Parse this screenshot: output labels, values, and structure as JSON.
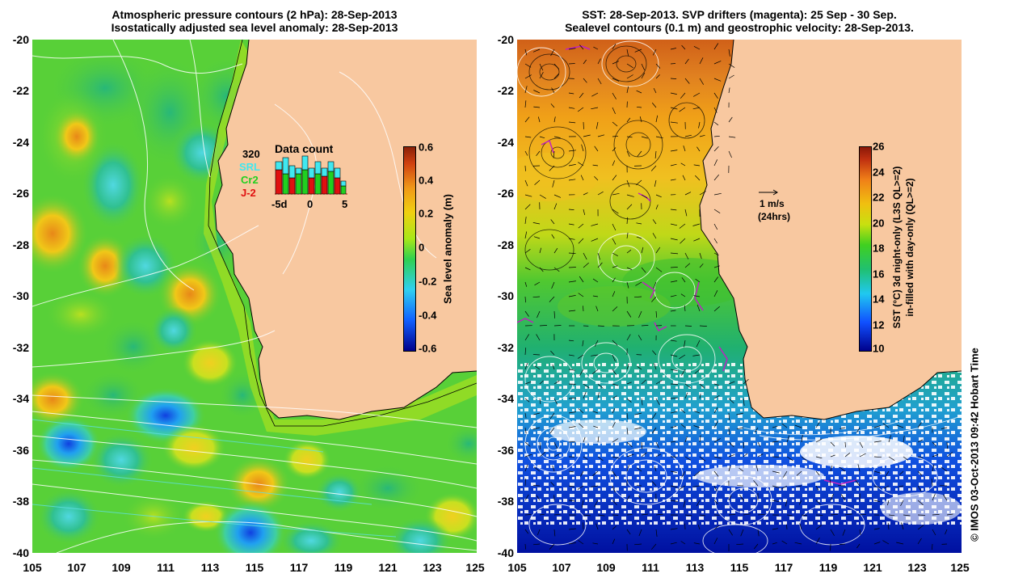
{
  "left_panel": {
    "title_line1": "Atmospheric pressure contours (2 hPa): 28-Sep-2013",
    "title_line2": "Isostatically adjusted sea level anomaly: 28-Sep-2013",
    "colorbar": {
      "label": "Sea level anomaly (m)",
      "ticks": [
        "0.6",
        "0.4",
        "0.2",
        "0",
        "-0.2",
        "-0.4",
        "-0.6"
      ]
    },
    "inset": {
      "title": "Data count",
      "max_label": "320",
      "satellites": [
        {
          "name": "SRL",
          "color": "#40e8f0"
        },
        {
          "name": "Cr2",
          "color": "#20d020"
        },
        {
          "name": "J-2",
          "color": "#e01010"
        }
      ],
      "x_ticks": [
        "-5d",
        "0",
        "5"
      ]
    }
  },
  "right_panel": {
    "title_line1": "SST: 28-Sep-2013. SVP drifters (magenta): 25 Sep - 30 Sep.",
    "title_line2": "Sealevel contours (0.1 m) and geostrophic velocity: 28-Sep-2013.",
    "velocity_scale_line1": "1 m/s",
    "velocity_scale_line2": "(24hrs)",
    "colorbar": {
      "label_line1": "SST (°C) 3d night-only (L3S QL>=2)",
      "label_line2": "in-filled with day-only (QL>=2)",
      "ticks": [
        "26",
        "24",
        "22",
        "20",
        "18",
        "16",
        "14",
        "12",
        "10"
      ]
    }
  },
  "axes": {
    "y_ticks": [
      "-20",
      "-22",
      "-24",
      "-26",
      "-28",
      "-30",
      "-32",
      "-34",
      "-36",
      "-38",
      "-40"
    ],
    "x_ticks": [
      "105",
      "107",
      "109",
      "111",
      "113",
      "115",
      "117",
      "119",
      "121",
      "123",
      "125"
    ]
  },
  "copyright": "© IMOS 03-Oct-2013 09:42 Hobart Time",
  "colors": {
    "land": "#f8c8a0",
    "sla_background": "#58d038",
    "sst_warm": "#f0a020"
  }
}
